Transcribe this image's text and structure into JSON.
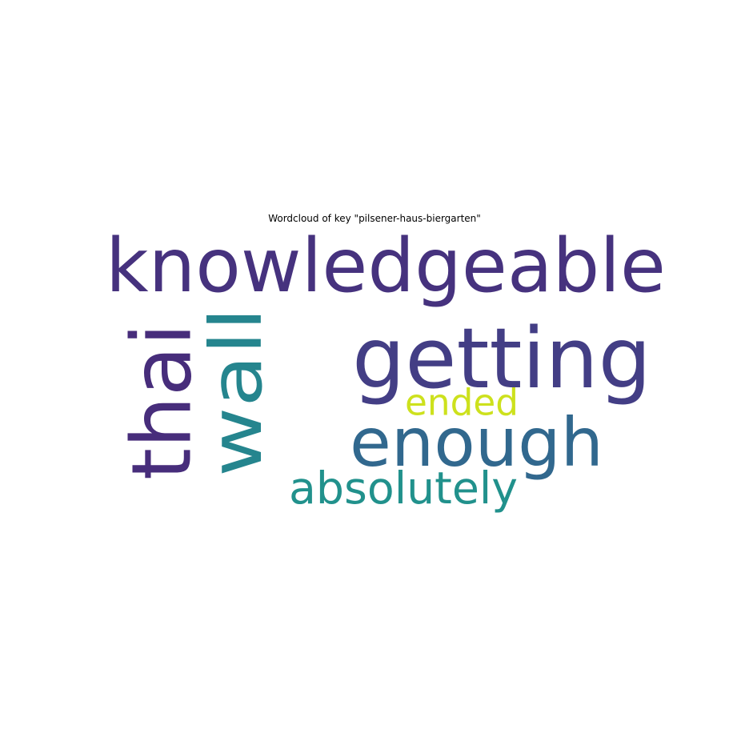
{
  "chart_data": {
    "type": "wordcloud",
    "title": "Wordcloud of key \"pilsener-haus-biergarten\"",
    "axis": "off",
    "words": [
      {
        "text": "knowledgeable",
        "color": "#46327e",
        "orientation": "horizontal"
      },
      {
        "text": "getting",
        "color": "#433e85",
        "orientation": "horizontal"
      },
      {
        "text": "enough",
        "color": "#31688e",
        "orientation": "horizontal"
      },
      {
        "text": "thai",
        "color": "#472d7b",
        "orientation": "vertical"
      },
      {
        "text": "wall",
        "color": "#25858e",
        "orientation": "vertical"
      },
      {
        "text": "ended",
        "color": "#cde11d",
        "orientation": "horizontal"
      },
      {
        "text": "absolutely",
        "color": "#21918c",
        "orientation": "horizontal"
      }
    ]
  }
}
